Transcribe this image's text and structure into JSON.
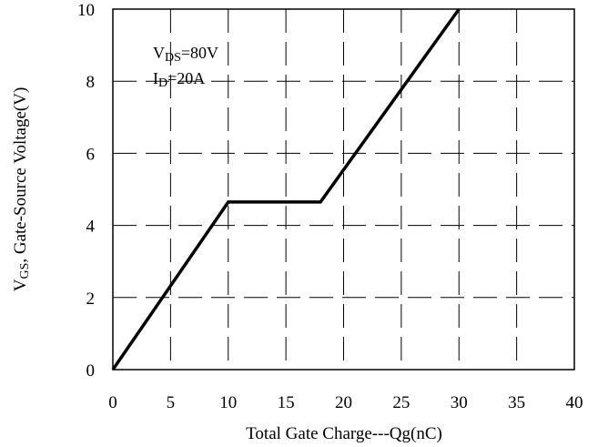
{
  "chart_data": {
    "type": "line",
    "title": "",
    "xlabel": "Total Gate Charge---Qg(nC)",
    "ylabel_parts": {
      "main": "V",
      "sub": "GS",
      "rest": ", Gate-Source Voltage(V)"
    },
    "xlim": [
      0,
      40
    ],
    "ylim": [
      0,
      10
    ],
    "x_ticks": [
      0,
      5,
      10,
      15,
      20,
      25,
      30,
      35,
      40
    ],
    "y_ticks": [
      0,
      2,
      4,
      6,
      8,
      10
    ],
    "grid": true,
    "grid_style": "dashed",
    "line_color": "#000000",
    "series": [
      {
        "points": [
          {
            "x": 0,
            "y": 0
          },
          {
            "x": 10,
            "y": 4.65
          },
          {
            "x": 18,
            "y": 4.65
          },
          {
            "x": 30,
            "y": 10
          }
        ]
      }
    ],
    "annotations": [
      {
        "main": "V",
        "sub": "DS",
        "rest": "=80V"
      },
      {
        "main": "I",
        "sub": "D",
        "rest": "=20A"
      }
    ]
  }
}
